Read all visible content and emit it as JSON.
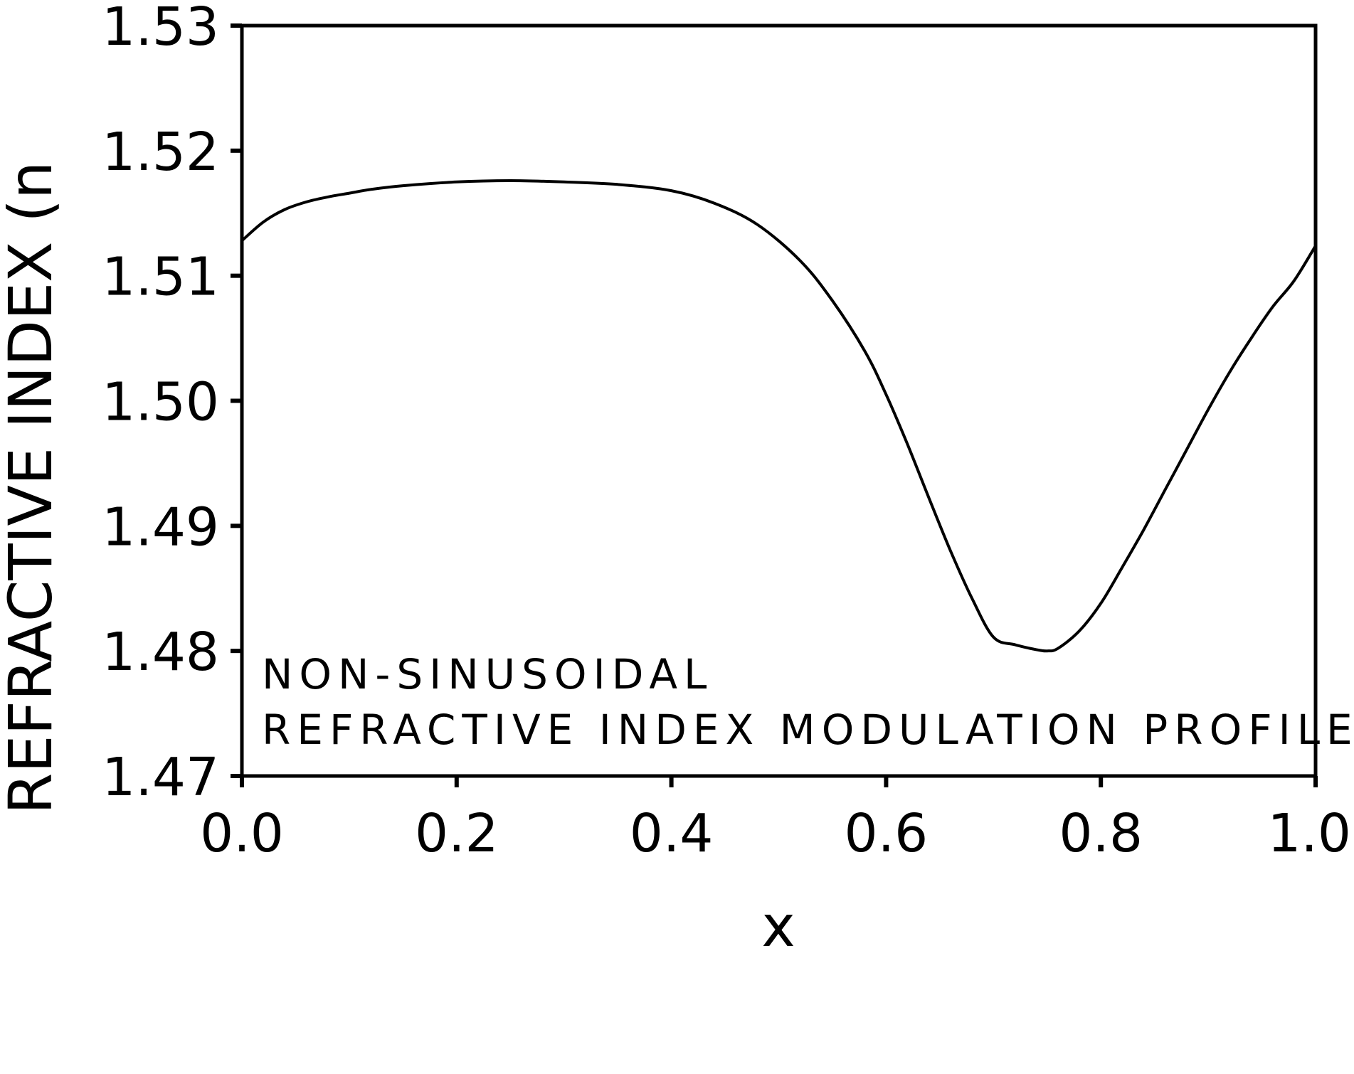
{
  "chart_data": {
    "type": "line",
    "title": "",
    "xlabel": "x",
    "ylabel": "REFRACTIVE INDEX (n",
    "xlim": [
      0.0,
      1.0
    ],
    "ylim": [
      1.47,
      1.53
    ],
    "x_ticks": [
      "0.0",
      "0.2",
      "0.4",
      "0.6",
      "0.8",
      "1.0"
    ],
    "y_ticks": [
      "1.47",
      "1.48",
      "1.49",
      "1.50",
      "1.51",
      "1.52",
      "1.53"
    ],
    "grid": false,
    "legend": "none",
    "annotation": [
      "NON-SINUSOIDAL",
      "REFRACTIVE INDEX MODULATION PROFILE"
    ],
    "line_color": "#000000",
    "series": [
      {
        "x": [
          0.0,
          0.02,
          0.04,
          0.06,
          0.08,
          0.1,
          0.12,
          0.15,
          0.2,
          0.25,
          0.3,
          0.35,
          0.4,
          0.44,
          0.48,
          0.52,
          0.55,
          0.58,
          0.6,
          0.62,
          0.64,
          0.66,
          0.68,
          0.7,
          0.72,
          0.74,
          0.75,
          0.76,
          0.78,
          0.8,
          0.82,
          0.84,
          0.86,
          0.88,
          0.9,
          0.92,
          0.94,
          0.96,
          0.98,
          1.0
        ],
        "y": [
          1.5128,
          1.5143,
          1.5153,
          1.5159,
          1.5163,
          1.5166,
          1.5169,
          1.5172,
          1.5175,
          1.5176,
          1.5175,
          1.5173,
          1.5168,
          1.5158,
          1.5141,
          1.5112,
          1.508,
          1.504,
          1.5005,
          1.4965,
          1.4922,
          1.488,
          1.4842,
          1.4811,
          1.4805,
          1.4801,
          1.48,
          1.4802,
          1.4816,
          1.4838,
          1.4867,
          1.4897,
          1.4929,
          1.4961,
          1.4993,
          1.5023,
          1.505,
          1.5075,
          1.5096,
          1.5124
        ]
      }
    ]
  }
}
